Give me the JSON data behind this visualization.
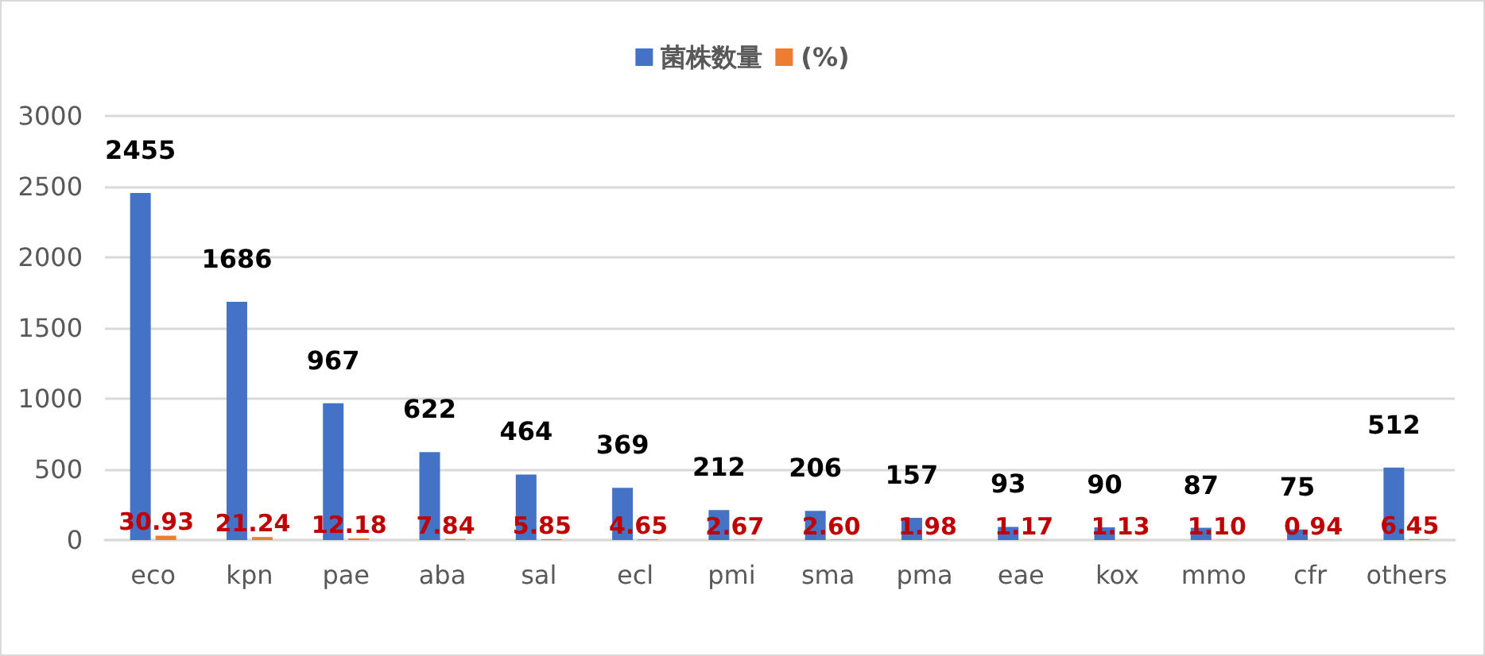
{
  "chart_data": {
    "type": "bar",
    "categories": [
      "eco",
      "kpn",
      "pae",
      "aba",
      "sal",
      "ecl",
      "pmi",
      "sma",
      "pma",
      "eae",
      "kox",
      "mmo",
      "cfr",
      "others"
    ],
    "series": [
      {
        "name": "菌株数量",
        "color": "#4472c4",
        "values": [
          2455,
          1686,
          967,
          622,
          464,
          369,
          212,
          206,
          157,
          93,
          90,
          87,
          75,
          512
        ]
      },
      {
        "name": "(%)",
        "color": "#ed7d31",
        "values": [
          30.93,
          21.24,
          12.18,
          7.84,
          5.85,
          4.65,
          2.67,
          2.6,
          1.98,
          1.17,
          1.13,
          1.1,
          0.94,
          6.45
        ],
        "value_labels": [
          "30.93",
          "21.24",
          "12.18",
          "7.84",
          "5.85",
          "4.65",
          "2.67",
          "2.60",
          "1.98",
          "1.17",
          "1.13",
          "1.10",
          "0.94",
          "6.45"
        ]
      }
    ],
    "ylim": [
      0,
      3000
    ],
    "yticks": [
      0,
      500,
      1000,
      1500,
      2000,
      2500,
      3000
    ],
    "grid": "y",
    "legend": "top",
    "data_labels": true
  }
}
